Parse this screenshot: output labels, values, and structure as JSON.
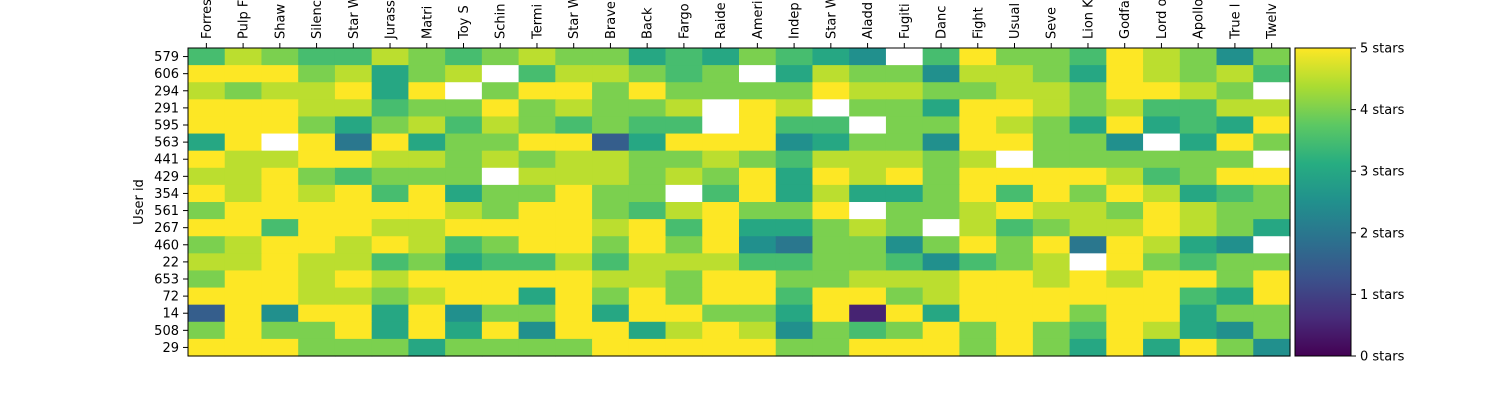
{
  "chart_data": {
    "type": "heatmap",
    "ylabel": "User id",
    "columns": [
      "Forres",
      "Pulp F",
      "Shaw",
      "Silenc",
      "Star W",
      "Jurass",
      "Matri",
      "Toy S",
      "Schin",
      "Termi",
      "Star W",
      "Brave",
      "Back",
      "Fargo",
      "Raide",
      "Ameri",
      "Indep",
      "Star W",
      "Aladd",
      "Fugiti",
      "Danc",
      "Fight",
      "Usual",
      "Seve",
      "Lion K",
      "Godfa",
      "Lord o",
      "Apollo",
      "True l",
      "Twelv"
    ],
    "rows": [
      "579",
      "606",
      "294",
      "291",
      "595",
      "563",
      "441",
      "429",
      "354",
      "561",
      "267",
      "460",
      "22",
      "653",
      "72",
      "14",
      "508",
      "29"
    ],
    "values": [
      [
        3.5,
        4.5,
        4,
        3.5,
        3.5,
        4.5,
        4,
        3.5,
        4,
        4.5,
        4,
        4,
        3,
        3.5,
        3,
        4,
        3.5,
        3,
        2.5,
        null,
        3.5,
        5,
        4,
        4,
        3.5,
        5,
        4.5,
        4,
        2.5,
        4
      ],
      [
        5,
        5,
        5,
        4,
        4.5,
        3,
        4,
        4.5,
        null,
        3.5,
        4.5,
        4.5,
        4,
        3.5,
        4,
        null,
        3,
        4.5,
        4,
        4,
        2.5,
        4.5,
        4.5,
        4,
        3,
        5,
        4.5,
        4,
        4.5,
        3.5
      ],
      [
        4.5,
        4,
        4.5,
        4.5,
        5,
        3,
        5,
        null,
        4,
        5,
        5,
        4,
        5,
        4,
        4,
        4,
        4,
        5,
        4.5,
        4.5,
        4,
        4,
        4.5,
        4.5,
        4,
        5,
        5,
        4.5,
        4,
        null
      ],
      [
        5,
        5,
        5,
        4.5,
        4.5,
        3.5,
        4,
        4,
        5,
        4,
        4.5,
        4,
        4,
        4.5,
        null,
        5,
        4.5,
        null,
        4,
        4,
        3,
        5,
        5,
        4.5,
        4,
        4.5,
        3.5,
        3.5,
        4.5,
        4.5
      ],
      [
        5,
        5,
        5,
        4,
        3,
        4,
        4.5,
        3.5,
        4.5,
        4,
        3.5,
        4,
        3.5,
        3.5,
        null,
        5,
        3.5,
        3.5,
        null,
        4,
        4,
        5,
        4.5,
        4,
        3,
        5,
        3,
        3.5,
        3,
        5
      ],
      [
        3,
        5,
        null,
        5,
        2,
        5,
        3,
        4,
        4,
        5,
        5,
        1.5,
        3,
        5,
        5,
        5,
        2.5,
        3,
        4,
        4,
        2.5,
        5,
        5,
        4,
        4,
        2.5,
        null,
        3,
        5,
        4
      ],
      [
        5,
        4.5,
        4.5,
        5,
        5,
        4.5,
        4.5,
        4,
        4.5,
        4,
        4.5,
        4.5,
        4,
        4,
        4.5,
        4,
        3.5,
        4.5,
        4.5,
        4.5,
        4,
        4.5,
        null,
        4,
        4,
        4,
        4,
        4,
        4,
        null
      ],
      [
        4.5,
        4.5,
        5,
        4,
        3.5,
        4,
        4,
        4,
        null,
        4.5,
        4.5,
        4.5,
        4,
        4.5,
        4,
        5,
        3,
        5,
        4.5,
        5,
        4,
        5,
        5,
        5,
        5,
        4.5,
        3.5,
        4,
        5,
        5
      ],
      [
        5,
        4.5,
        5,
        4.5,
        5,
        3.5,
        5,
        3,
        4,
        4,
        5,
        4,
        4,
        null,
        3.5,
        5,
        3,
        4.5,
        3,
        3,
        4,
        5,
        3.5,
        5,
        4,
        5,
        4.5,
        3,
        3.5,
        4
      ],
      [
        4,
        5,
        5,
        5,
        5,
        5,
        5,
        4.5,
        4,
        5,
        5,
        4,
        3.5,
        4.5,
        5,
        4,
        4,
        5,
        null,
        4,
        4,
        4.5,
        5,
        4.5,
        4.5,
        4,
        5,
        4.5,
        4,
        4
      ],
      [
        5,
        5,
        3.5,
        5,
        5,
        4.5,
        4.5,
        5,
        5,
        5,
        5,
        4.5,
        5,
        3.5,
        5,
        3,
        3,
        4,
        4.5,
        4,
        null,
        4.5,
        3.5,
        4,
        4.5,
        4.5,
        5,
        4.5,
        4,
        3
      ],
      [
        4,
        4.5,
        5,
        5,
        4.5,
        5,
        4.5,
        3.5,
        4,
        5,
        5,
        4,
        5,
        4,
        5,
        2.5,
        2,
        4,
        4,
        2.5,
        4,
        5,
        4,
        5,
        2,
        5,
        4.5,
        3,
        2.5,
        null
      ],
      [
        4.5,
        4.5,
        5,
        4.5,
        4.5,
        3.5,
        4,
        3,
        3.5,
        3.5,
        4.5,
        3.5,
        4.5,
        4.5,
        4.5,
        3.5,
        3.5,
        4,
        4,
        3.5,
        2.5,
        3.5,
        4,
        4.5,
        null,
        5,
        4,
        3.5,
        4,
        4
      ],
      [
        4,
        5,
        5,
        4.5,
        5,
        4.5,
        5,
        5,
        5,
        5,
        5,
        4.5,
        4.5,
        4,
        5,
        5,
        4,
        4,
        4.5,
        4.5,
        4.5,
        5,
        5,
        4.5,
        5,
        4.5,
        5,
        5,
        4,
        5
      ],
      [
        5,
        5,
        5,
        4.5,
        4.5,
        4,
        4.5,
        5,
        5,
        3,
        5,
        4,
        5,
        4,
        5,
        5,
        3.5,
        5,
        5,
        4,
        4.5,
        5,
        5,
        5,
        5,
        5,
        5,
        3.5,
        3,
        5
      ],
      [
        1.5,
        5,
        2.5,
        5,
        5,
        3,
        5,
        2.5,
        4,
        4,
        5,
        3,
        5,
        5,
        4,
        4,
        3,
        5,
        0.5,
        5,
        3,
        5,
        5,
        5,
        4,
        5,
        5,
        3,
        4,
        4
      ],
      [
        4,
        5,
        4,
        4,
        5,
        3,
        5,
        3,
        5,
        2.5,
        5,
        5,
        3,
        4.5,
        5,
        4.5,
        2.5,
        4,
        3.5,
        4,
        5,
        4,
        5,
        4,
        3.5,
        5,
        4.5,
        3,
        2.5,
        4
      ],
      [
        5,
        5,
        5,
        4,
        4,
        4,
        3,
        4,
        4,
        4,
        4,
        5,
        5,
        5,
        5,
        5,
        4,
        4,
        5,
        5,
        5,
        4,
        5,
        4,
        3,
        5,
        3,
        5,
        4,
        2.5
      ]
    ],
    "range": [
      0,
      5
    ],
    "colorbar_ticks": [
      "0 stars",
      "1 stars",
      "2 stars",
      "3 stars",
      "4 stars",
      "5 stars"
    ],
    "colormap": "viridis",
    "missing_color": "#ffffff"
  }
}
